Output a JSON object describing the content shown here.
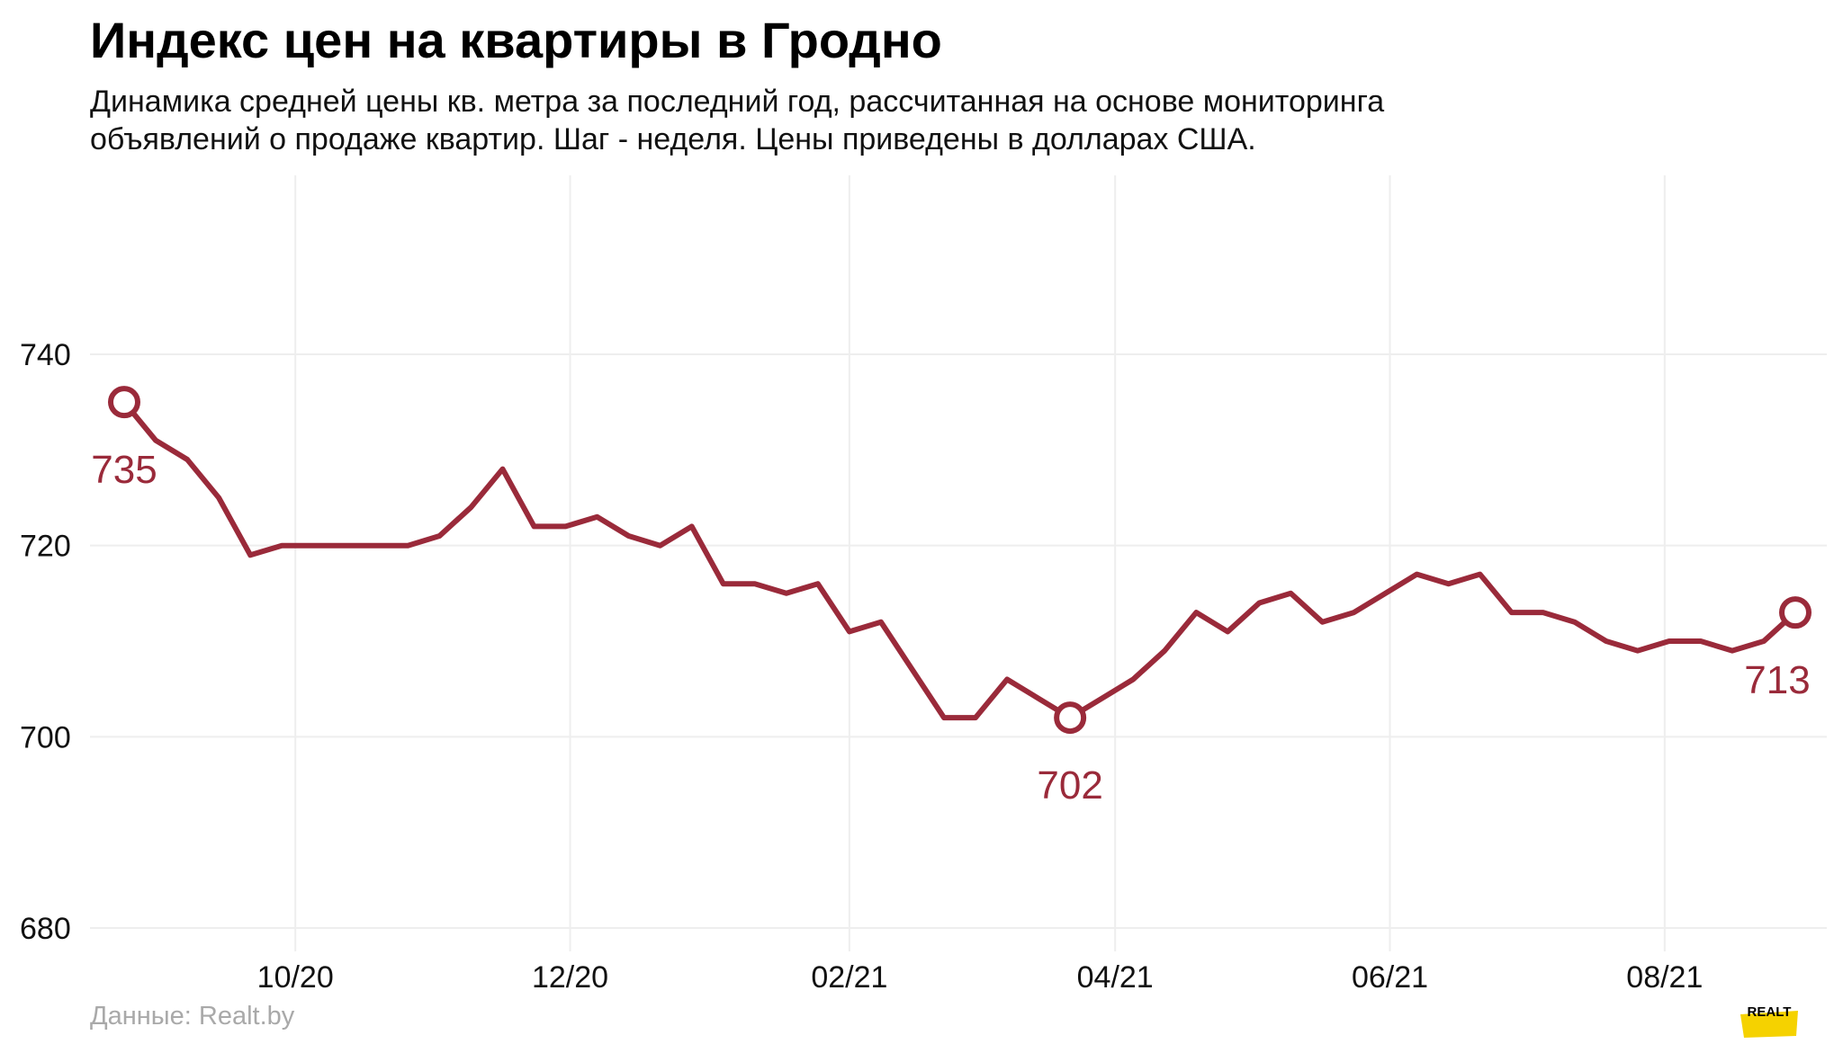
{
  "colors": {
    "line": "#9a2a3a",
    "grid": "#eeeeee",
    "source": "#a9a9a9",
    "logo_bg": "#f5d200"
  },
  "source": "Данные: Realt.by",
  "logo": {
    "text": "REALT",
    "icon": "realt-logo"
  },
  "chart_data": {
    "type": "line",
    "title": "Индекс цен на квартиры в Гродно",
    "subtitle_lines": [
      "Динамика средней цены кв. метра за последний год, рассчитанная на основе мониторинга",
      "объявлений о продаже квартир. Шаг - неделя. Цены приведены в долларах США."
    ],
    "xlabel": "",
    "ylabel": "",
    "ylim": [
      675,
      755
    ],
    "yticks": [
      680,
      700,
      720,
      740
    ],
    "x_start": "2020-08-24",
    "x_step_days": 7,
    "xticks": [
      {
        "label": "10/20",
        "date": "2020-10-01"
      },
      {
        "label": "12/20",
        "date": "2020-12-01"
      },
      {
        "label": "02/21",
        "date": "2021-02-01"
      },
      {
        "label": "04/21",
        "date": "2021-04-01"
      },
      {
        "label": "06/21",
        "date": "2021-06-01"
      },
      {
        "label": "08/21",
        "date": "2021-08-01"
      }
    ],
    "grid": true,
    "series": [
      {
        "name": "",
        "values": [
          735,
          731,
          729,
          725,
          719,
          720,
          720,
          720,
          720,
          720,
          721,
          724,
          728,
          722,
          722,
          723,
          721,
          720,
          722,
          716,
          716,
          715,
          716,
          711,
          712,
          707,
          702,
          702,
          706,
          704,
          702,
          704,
          706,
          709,
          713,
          711,
          714,
          715,
          712,
          713,
          715,
          717,
          716,
          717,
          713,
          713,
          712,
          710,
          709,
          710,
          710,
          709,
          710,
          713
        ]
      }
    ],
    "annotations": [
      {
        "index": 0,
        "value": "735",
        "position": "below"
      },
      {
        "index": 30,
        "value": "702",
        "position": "below"
      },
      {
        "index": 53,
        "value": "713",
        "position": "below"
      }
    ]
  }
}
